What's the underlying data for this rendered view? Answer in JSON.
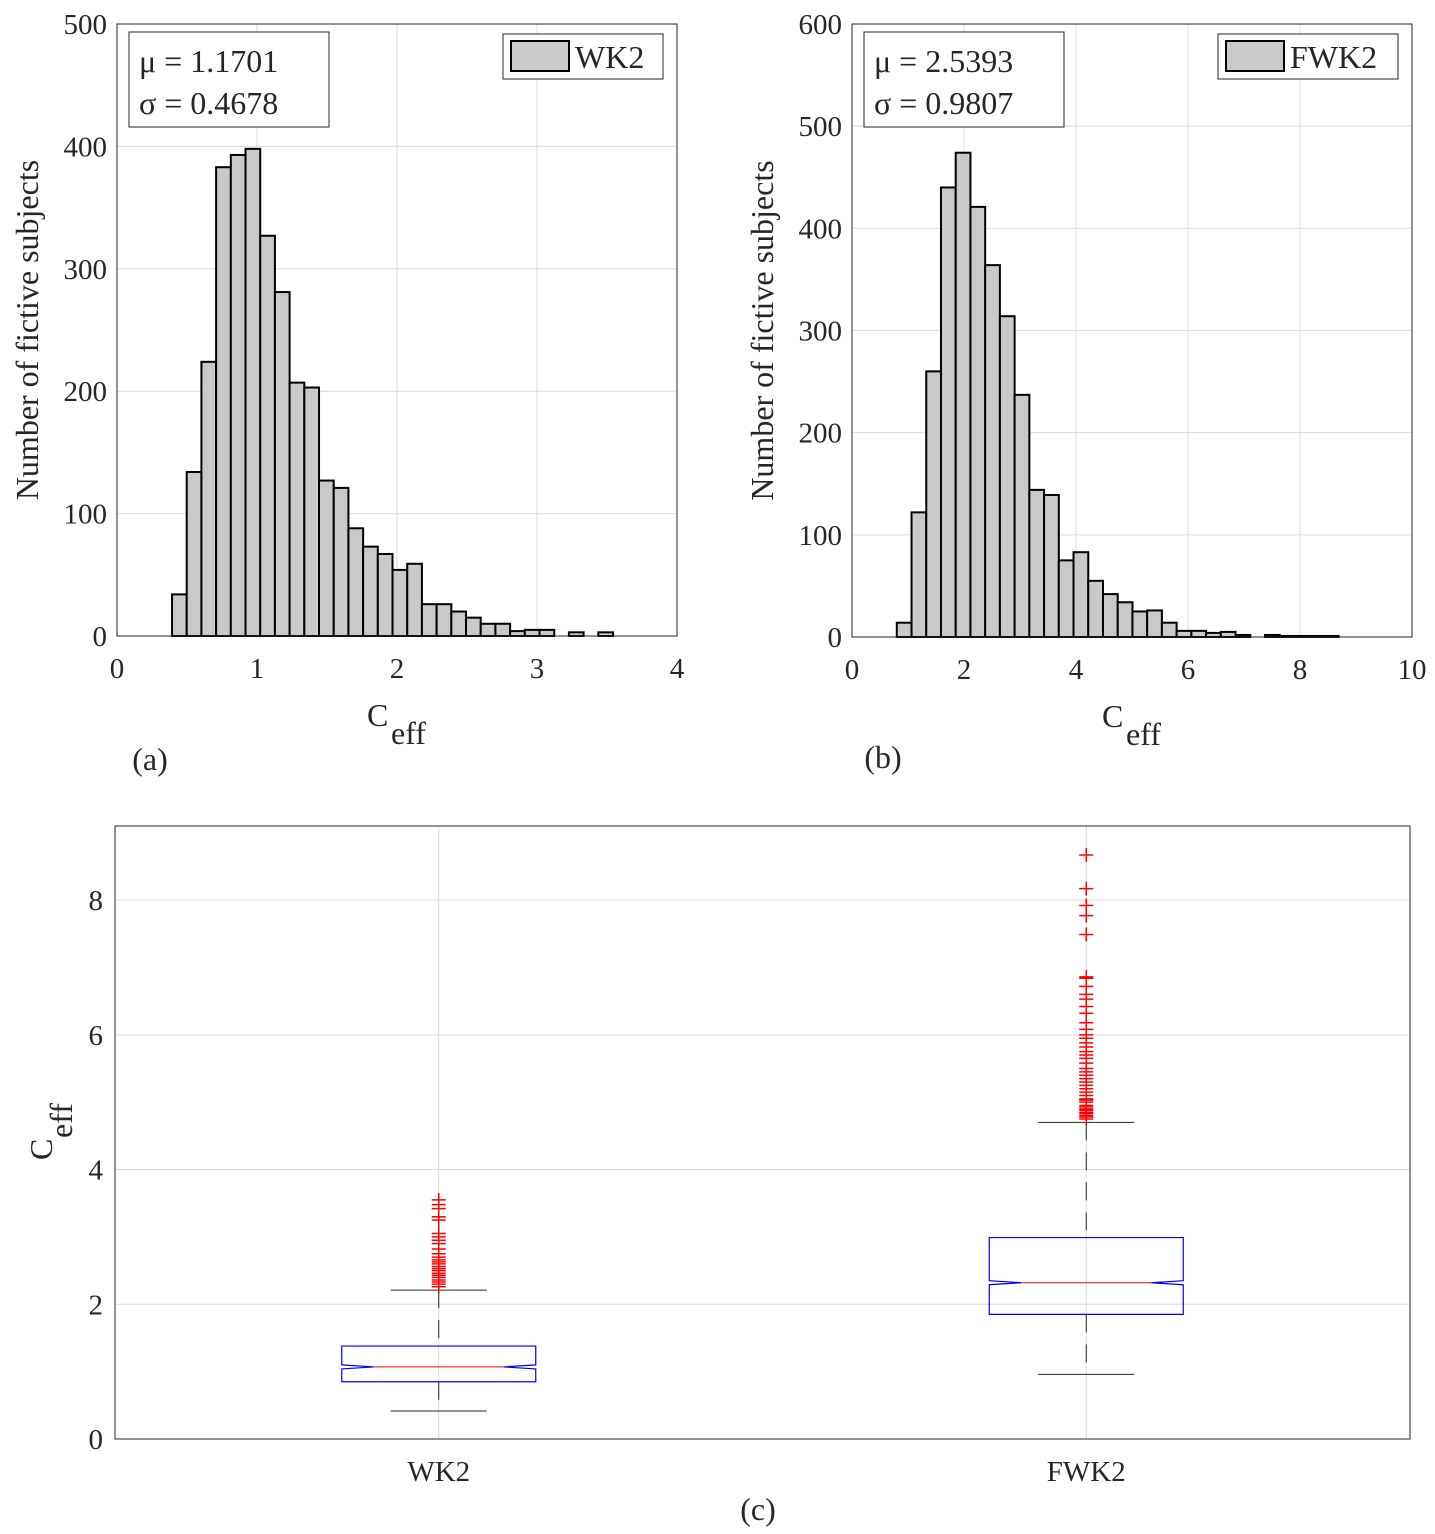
{
  "chart_data": [
    {
      "type": "bar",
      "panel_label": "(a)",
      "xlabel": "C",
      "xlabel_sub": "eff",
      "ylabel": "Number of fictive subjects",
      "xlim": [
        0,
        4
      ],
      "ylim": [
        0,
        500
      ],
      "xticks": [
        "0",
        "1",
        "2",
        "3",
        "4"
      ],
      "yticks": [
        "0",
        "100",
        "200",
        "300",
        "400",
        "500"
      ],
      "grid": true,
      "legend": {
        "entries": [
          "WK2"
        ],
        "placement": "top-right"
      },
      "annotation": {
        "mu": "μ = 1.1701",
        "sigma": "σ = 0.4678"
      },
      "bin_start": 0.393,
      "bin_width": 0.105,
      "values": [
        34,
        134,
        224,
        383,
        393,
        398,
        327,
        281,
        207,
        203,
        127,
        121,
        88,
        73,
        67,
        54,
        59,
        26,
        26,
        20,
        15,
        10,
        10,
        4,
        5,
        5,
        0,
        3,
        0,
        3
      ],
      "bar_color": "#c9c9c9"
    },
    {
      "type": "bar",
      "panel_label": "(b)",
      "xlabel": "C",
      "xlabel_sub": "eff",
      "ylabel": "Number of fictive subjects",
      "xlim": [
        0,
        10
      ],
      "ylim": [
        0,
        600
      ],
      "xticks": [
        "0",
        "2",
        "4",
        "6",
        "8",
        "10"
      ],
      "yticks": [
        "0",
        "100",
        "200",
        "300",
        "400",
        "500",
        "600"
      ],
      "grid": true,
      "legend": {
        "entries": [
          "FWK2"
        ],
        "placement": "top-right"
      },
      "annotation": {
        "mu": "μ = 2.5393",
        "sigma": "σ = 0.9807"
      },
      "bin_start": 0.8,
      "bin_width": 0.263,
      "values": [
        14,
        122,
        260,
        440,
        474,
        421,
        364,
        314,
        237,
        144,
        139,
        75,
        83,
        55,
        42,
        34,
        25,
        26,
        14,
        6,
        6,
        4,
        5,
        2,
        0,
        2,
        1,
        1,
        1,
        1
      ],
      "bar_color": "#c9c9c9"
    },
    {
      "type": "box",
      "panel_label": "(c)",
      "ylabel": "C",
      "ylabel_sub": "eff",
      "categories": [
        "WK2",
        "FWK2"
      ],
      "ylim": [
        0,
        9.1
      ],
      "yticks": [
        "0",
        "2",
        "4",
        "6",
        "8"
      ],
      "grid": true,
      "colors": {
        "box": "#0000ff",
        "median": "#ff0000",
        "outlier": "#ff0000",
        "whisker": "#262626"
      },
      "boxes": [
        {
          "name": "WK2",
          "whisker_low": 0.415,
          "q1": 0.85,
          "notch_low": 1.04,
          "median": 1.07,
          "notch_high": 1.1,
          "q3": 1.38,
          "whisker_high": 2.21,
          "outliers": [
            2.26,
            2.3,
            2.33,
            2.36,
            2.4,
            2.43,
            2.46,
            2.5,
            2.53,
            2.56,
            2.6,
            2.63,
            2.66,
            2.7,
            2.75,
            2.82,
            2.9,
            2.95,
            3.0,
            3.05,
            3.25,
            3.3,
            3.42,
            3.48,
            3.55
          ]
        },
        {
          "name": "FWK2",
          "whisker_low": 0.96,
          "q1": 1.85,
          "notch_low": 2.29,
          "median": 2.32,
          "notch_high": 2.35,
          "q3": 2.99,
          "whisker_high": 4.7,
          "outliers": [
            4.75,
            4.78,
            4.8,
            4.83,
            4.85,
            4.88,
            4.9,
            4.93,
            4.95,
            5.0,
            5.03,
            5.05,
            5.1,
            5.15,
            5.2,
            5.25,
            5.3,
            5.35,
            5.4,
            5.45,
            5.5,
            5.58,
            5.65,
            5.7,
            5.75,
            5.82,
            5.88,
            5.95,
            6.0,
            6.08,
            6.18,
            6.32,
            6.42,
            6.53,
            6.6,
            6.72,
            6.84,
            6.86,
            7.49,
            7.77,
            7.92,
            8.17,
            8.67
          ]
        }
      ]
    }
  ]
}
